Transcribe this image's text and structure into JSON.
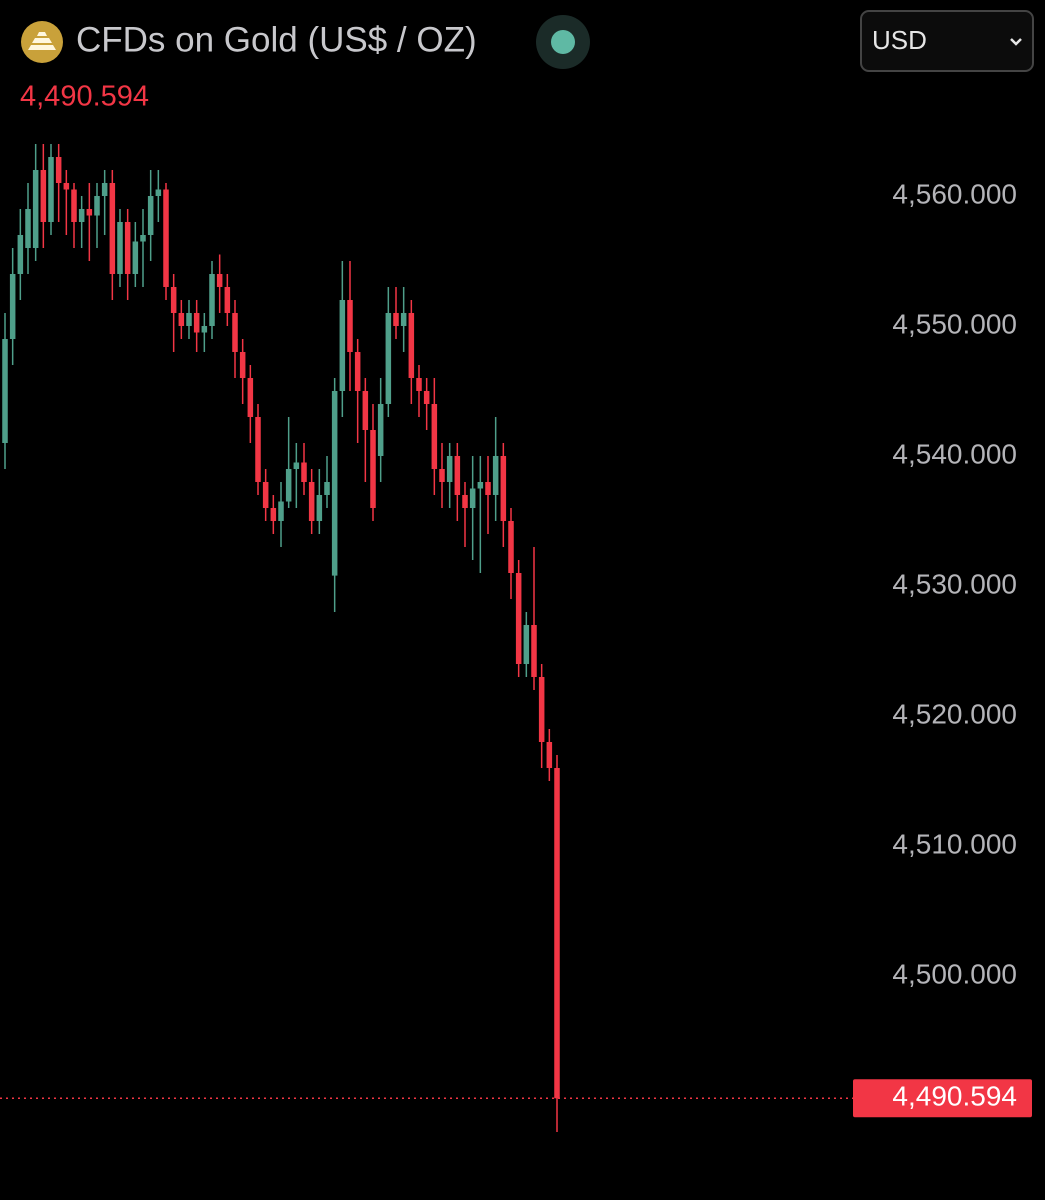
{
  "toolbar": {
    "currency": "USD"
  },
  "chart_data": {
    "type": "candlestick",
    "title": "CFDs on Gold (US$ / OZ)",
    "current_price": {
      "value": 4490.594,
      "label": "4,490.594"
    },
    "up_color": "#4f9f8a",
    "down_color": "#f23645",
    "ylim": [
      4483,
      4565
    ],
    "yticks": [
      {
        "value": 4560,
        "label": "4,560.000"
      },
      {
        "value": 4550,
        "label": "4,550.000"
      },
      {
        "value": 4540,
        "label": "4,540.000"
      },
      {
        "value": 4530,
        "label": "4,530.000"
      },
      {
        "value": 4520,
        "label": "4,520.000"
      },
      {
        "value": 4510,
        "label": "4,510.000"
      },
      {
        "value": 4500,
        "label": "4,500.000"
      }
    ],
    "open": [
      4541,
      4549,
      4554,
      4556,
      4556,
      4562,
      4558,
      4563,
      4561,
      4560.5,
      4558,
      4559,
      4558.5,
      4560,
      4561,
      4554,
      4558,
      4554,
      4556.5,
      4557,
      4560,
      4560.5,
      4553,
      4551,
      4550,
      4551,
      4549.5,
      4550,
      4554,
      4553,
      4551,
      4548,
      4546,
      4543,
      4538,
      4536,
      4535,
      4536.5,
      4539,
      4539.5,
      4538,
      4535,
      4537,
      4530.8,
      4545,
      4552,
      4548,
      4545,
      4542,
      4540,
      4544,
      4551,
      4550,
      4551,
      4546,
      4545,
      4544,
      4539,
      4538,
      4540,
      4537,
      4536,
      4537.5,
      4538,
      4537,
      4540,
      4535,
      4531,
      4524,
      4527,
      4523,
      4518,
      4516
    ],
    "high": [
      4551,
      4556,
      4559,
      4561,
      4564,
      4564,
      4564,
      4564,
      4562,
      4561,
      4560,
      4561,
      4561,
      4562,
      4562,
      4559,
      4559,
      4558,
      4559,
      4562,
      4562,
      4561,
      4554,
      4552,
      4552,
      4552,
      4551,
      4555,
      4555.5,
      4554,
      4552,
      4549,
      4547,
      4544,
      4539,
      4537,
      4538,
      4543,
      4541,
      4541,
      4539,
      4539,
      4540,
      4546,
      4555,
      4555,
      4549,
      4546,
      4544,
      4546,
      4553,
      4553,
      4553,
      4552,
      4547,
      4546,
      4546,
      4541,
      4541,
      4541,
      4538,
      4540,
      4540,
      4540,
      4543,
      4541,
      4536,
      4532,
      4528,
      4533,
      4524,
      4519,
      4517
    ],
    "low": [
      4539,
      4547,
      4552,
      4554,
      4555,
      4556,
      4557,
      4558,
      4557,
      4556,
      4556,
      4555,
      4556,
      4557,
      4552,
      4553,
      4552,
      4553,
      4553,
      4555,
      4558,
      4552,
      4548,
      4549,
      4549,
      4548,
      4548,
      4549,
      4551,
      4550,
      4546,
      4544,
      4541,
      4537,
      4535,
      4534,
      4533,
      4536,
      4536,
      4537,
      4534,
      4534,
      4536,
      4528,
      4543,
      4545,
      4541,
      4538,
      4535,
      4538,
      4543,
      4549,
      4548,
      4544,
      4543,
      4542,
      4537,
      4536,
      4536,
      4535,
      4533,
      4532,
      4531,
      4534,
      4535,
      4533,
      4529,
      4523,
      4523,
      4522,
      4516,
      4515,
      4488
    ],
    "close": [
      4549,
      4554,
      4557,
      4559,
      4562,
      4558,
      4563,
      4561,
      4560.5,
      4558,
      4559,
      4558.5,
      4560,
      4561,
      4554,
      4558,
      4554,
      4556.5,
      4557,
      4560,
      4560.5,
      4553,
      4551,
      4550,
      4551,
      4549.5,
      4550,
      4554,
      4553,
      4551,
      4548,
      4546,
      4543,
      4538,
      4536,
      4535,
      4536.5,
      4539,
      4539.5,
      4538,
      4535,
      4537,
      4538,
      4545,
      4552,
      4548,
      4545,
      4542,
      4536,
      4544,
      4551,
      4550,
      4551,
      4546,
      4545,
      4544,
      4539,
      4538,
      4540,
      4537,
      4536,
      4537.5,
      4538,
      4537,
      4540,
      4535,
      4531,
      4524,
      4527,
      4523,
      4518,
      4516,
      4490.594
    ]
  }
}
